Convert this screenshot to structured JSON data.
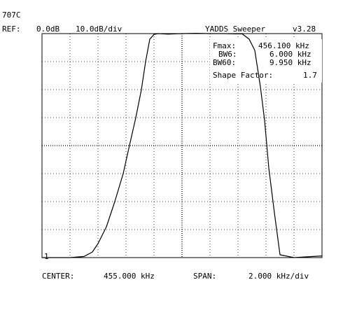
{
  "header": {
    "id_label": "707C",
    "ref_label": "REF:",
    "ref_value": "0.0dB",
    "vertical_scale": "10.0dB/div",
    "app_title": "YADDS Sweeper",
    "version": "v3.28"
  },
  "footer": {
    "center_label": "CENTER:",
    "center_value": "455.000 kHz",
    "span_label": "SPAN:",
    "span_value": "2.000 kHz/div"
  },
  "measurements": [
    {
      "label": "Fmax:",
      "value": "456.100 kHz"
    },
    {
      "label": "BW6:",
      "value": "6.000 kHz"
    },
    {
      "label": "BW60:",
      "value": "9.950 kHz"
    },
    {
      "label": "Shape Factor:",
      "value": "1.7"
    }
  ],
  "marker": {
    "label": "1"
  },
  "chart_data": {
    "type": "line",
    "xlabel": "",
    "ylabel": "",
    "xlim": [
      445.0,
      465.0
    ],
    "ylim": [
      -80,
      0
    ],
    "x_unit": "kHz",
    "y_unit": "dB",
    "grid": true,
    "series": [
      {
        "x": [
          445.0,
          447.0,
          448.0,
          448.6,
          449.0,
          449.6,
          450.2,
          450.8,
          451.2,
          451.7,
          452.1,
          452.4,
          452.7,
          453.0,
          453.3,
          454.0,
          455.0,
          456.0,
          457.0,
          458.0,
          458.8,
          459.3,
          459.8,
          460.2,
          460.6,
          460.9,
          461.2,
          461.6,
          462.0,
          463.0,
          465.0
        ],
        "y": [
          -80.0,
          -80.0,
          -79.6,
          -78.0,
          -75.0,
          -69.0,
          -60.0,
          -50.0,
          -41.0,
          -30.0,
          -20.0,
          -10.0,
          -2.0,
          -0.3,
          0.0,
          -0.2,
          0.0,
          0.1,
          0.0,
          0.0,
          -0.1,
          -0.1,
          -2.0,
          -6.0,
          -19.0,
          -31.0,
          -48.0,
          -64.0,
          -79.0,
          -80.0,
          -79.4
        ],
        "color": "#000000"
      }
    ]
  }
}
